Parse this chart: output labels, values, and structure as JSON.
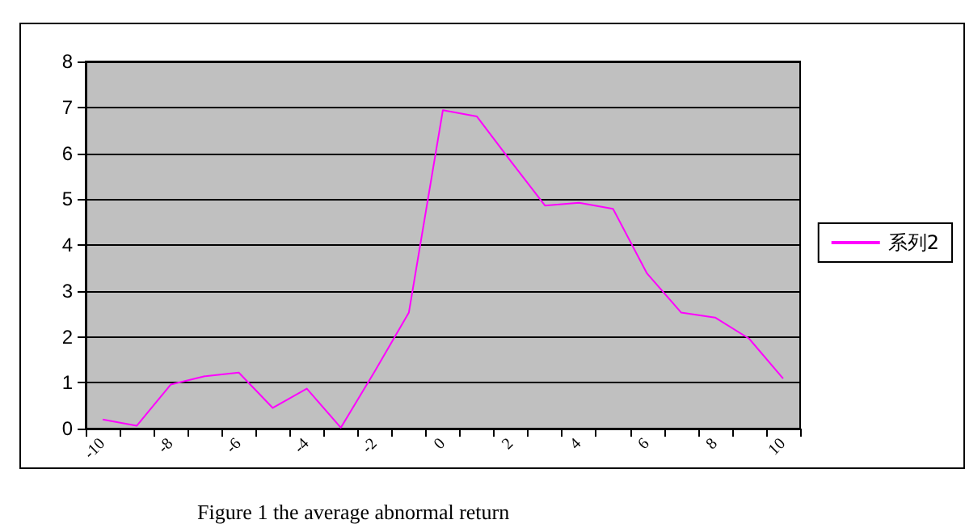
{
  "chart_data": {
    "type": "line",
    "categories": [
      "-10",
      null,
      "-8",
      null,
      "-6",
      null,
      "-4",
      null,
      "-2",
      null,
      "0",
      null,
      "2",
      null,
      "4",
      null,
      "6",
      null,
      "8",
      null,
      "10"
    ],
    "series": [
      {
        "name": "系列2",
        "color": "#ff00ff",
        "values": [
          0.2,
          0.06,
          0.96,
          1.14,
          1.22,
          0.45,
          0.87,
          0.02,
          1.25,
          2.53,
          6.94,
          6.8,
          5.82,
          4.86,
          4.92,
          4.79,
          3.38,
          2.53,
          2.42,
          1.96,
          1.09
        ]
      }
    ],
    "ylim": [
      0,
      8
    ],
    "yticks": [
      0,
      1,
      2,
      3,
      4,
      5,
      6,
      7,
      8
    ],
    "grid": "y",
    "legend": "right",
    "marker": "none",
    "line_style": "solid",
    "annotations": [
      "Figure 1 the average abnormal return"
    ]
  }
}
